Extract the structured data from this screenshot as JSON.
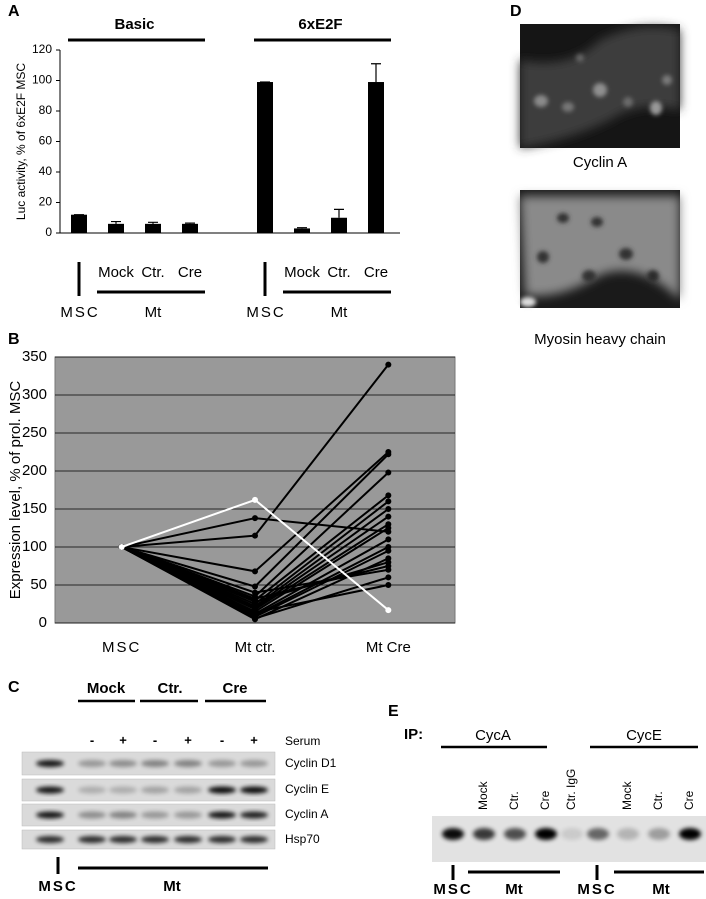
{
  "panel_labels": [
    "A",
    "B",
    "C",
    "D",
    "E"
  ],
  "chart_data": [
    {
      "type": "bar",
      "ylabel": "Luc activity, % of 6xE2F MSC",
      "categories": [
        "MSC",
        "Mock",
        "Ctr.",
        "Cre",
        "MSC",
        "Mock",
        "Ctr.",
        "Cre"
      ],
      "groups": [
        {
          "name": "Basic",
          "sublabel": "Mt"
        },
        {
          "name": "6xE2F",
          "sublabel": "Mt"
        }
      ],
      "values": [
        12,
        6,
        6,
        6,
        99,
        3,
        10,
        99
      ],
      "errors": [
        0,
        1.5,
        1,
        0.5,
        0,
        0.5,
        5.5,
        12
      ],
      "color": "#000000",
      "ylim": [
        0,
        120
      ],
      "yticks": [
        0,
        20,
        40,
        60,
        80,
        100,
        120
      ]
    },
    {
      "type": "line",
      "ylabel": "Expression level, % of prol. MSC",
      "categories": [
        "MSC",
        "Mt ctr.",
        "Mt Cre"
      ],
      "series": [
        {
          "color": "#000000",
          "values": [
            100,
            115,
            340
          ]
        },
        {
          "color": "#000000",
          "values": [
            100,
            138,
            120
          ]
        },
        {
          "color": "#000000",
          "values": [
            100,
            68,
            225
          ]
        },
        {
          "color": "#000000",
          "values": [
            100,
            48,
            222
          ]
        },
        {
          "color": "#000000",
          "values": [
            100,
            35,
            198
          ]
        },
        {
          "color": "#000000",
          "values": [
            100,
            30,
            168
          ]
        },
        {
          "color": "#000000",
          "values": [
            100,
            25,
            160
          ]
        },
        {
          "color": "#000000",
          "values": [
            100,
            22,
            150
          ]
        },
        {
          "color": "#000000",
          "values": [
            100,
            20,
            140
          ]
        },
        {
          "color": "#000000",
          "values": [
            100,
            18,
            130
          ]
        },
        {
          "color": "#000000",
          "values": [
            100,
            15,
            125
          ]
        },
        {
          "color": "#000000",
          "values": [
            100,
            12,
            110
          ]
        },
        {
          "color": "#000000",
          "values": [
            100,
            10,
            100
          ]
        },
        {
          "color": "#000000",
          "values": [
            100,
            8,
            95
          ]
        },
        {
          "color": "#000000",
          "values": [
            100,
            5,
            85
          ]
        },
        {
          "color": "#000000",
          "values": [
            100,
            28,
            80
          ]
        },
        {
          "color": "#000000",
          "values": [
            100,
            32,
            75
          ]
        },
        {
          "color": "#000000",
          "values": [
            100,
            40,
            70
          ]
        },
        {
          "color": "#000000",
          "values": [
            100,
            6,
            60
          ]
        },
        {
          "color": "#000000",
          "values": [
            100,
            14,
            50
          ]
        },
        {
          "color": "#ffffff",
          "values": [
            100,
            162,
            17
          ]
        }
      ],
      "ylim": [
        0,
        350
      ],
      "yticks": [
        0,
        50,
        100,
        150,
        200,
        250,
        300,
        350
      ],
      "grid": true,
      "background": "#999999"
    }
  ],
  "western_blot": {
    "groups": [
      "Mock",
      "Ctr.",
      "Cre"
    ],
    "serum": [
      "-",
      "+",
      "-",
      "+",
      "-",
      "+"
    ],
    "serum_label": "Serum",
    "rows": [
      "Cyclin D1",
      "Cyclin E",
      "Cyclin A",
      "Hsp70"
    ],
    "bottom": [
      "MSC",
      "Mt"
    ]
  },
  "images": {
    "captions": [
      "Cyclin A",
      "Myosin heavy chain"
    ]
  },
  "ip": {
    "label": "IP:",
    "groups": [
      "CycA",
      "CycE"
    ],
    "lanes": [
      "Mock",
      "Ctr.",
      "Cre",
      "Ctr. IgG",
      "Mock",
      "Ctr.",
      "Cre"
    ],
    "bottom": [
      "MSC",
      "Mt",
      "MSC",
      "Mt"
    ]
  }
}
